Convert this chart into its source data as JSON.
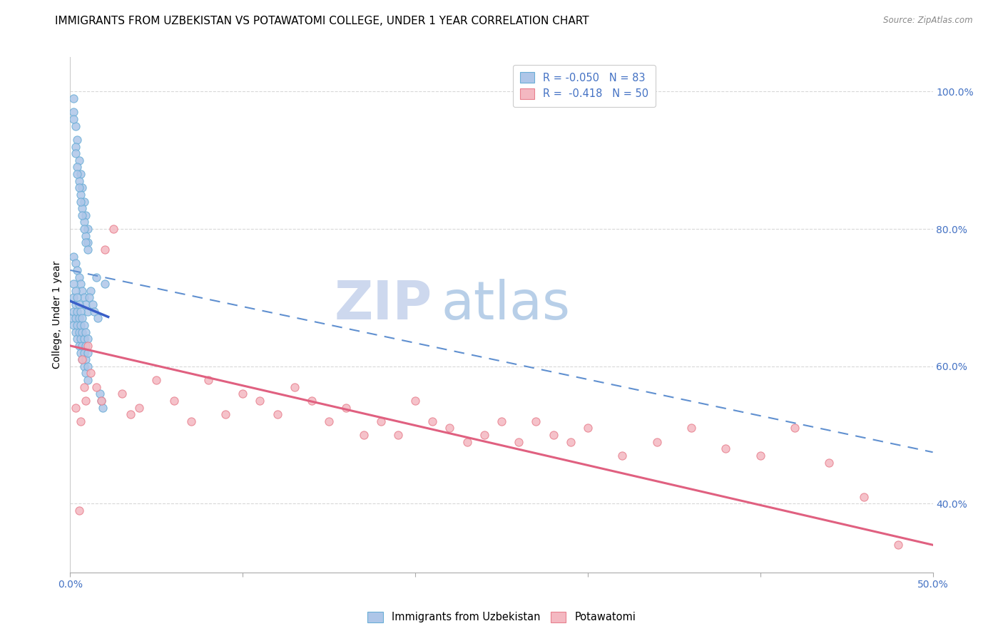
{
  "title": "IMMIGRANTS FROM UZBEKISTAN VS POTAWATOMI COLLEGE, UNDER 1 YEAR CORRELATION CHART",
  "source": "Source: ZipAtlas.com",
  "ylabel": "College, Under 1 year",
  "xmin": 0.0,
  "xmax": 0.5,
  "ymin": 0.3,
  "ymax": 1.05,
  "x_tick_positions": [
    0.0,
    0.1,
    0.2,
    0.3,
    0.4,
    0.5
  ],
  "x_tick_labels": [
    "0.0%",
    "",
    "",
    "",
    "",
    "50.0%"
  ],
  "y_ticks_right": [
    0.4,
    0.6,
    0.8,
    1.0
  ],
  "y_tick_labels_right": [
    "40.0%",
    "60.0%",
    "80.0%",
    "100.0%"
  ],
  "watermark_zip": "ZIP",
  "watermark_atlas": "atlas",
  "scatter_blue_x": [
    0.002,
    0.003,
    0.004,
    0.005,
    0.006,
    0.007,
    0.008,
    0.009,
    0.01,
    0.002,
    0.003,
    0.004,
    0.005,
    0.006,
    0.007,
    0.008,
    0.009,
    0.01,
    0.002,
    0.003,
    0.004,
    0.005,
    0.006,
    0.007,
    0.008,
    0.009,
    0.01,
    0.002,
    0.003,
    0.004,
    0.005,
    0.006,
    0.007,
    0.008,
    0.009,
    0.01,
    0.001,
    0.002,
    0.003,
    0.004,
    0.005,
    0.006,
    0.007,
    0.008,
    0.009,
    0.01,
    0.002,
    0.003,
    0.004,
    0.005,
    0.006,
    0.007,
    0.008,
    0.009,
    0.01,
    0.002,
    0.003,
    0.004,
    0.005,
    0.006,
    0.007,
    0.008,
    0.009,
    0.01,
    0.002,
    0.003,
    0.004,
    0.005,
    0.006,
    0.007,
    0.008,
    0.009,
    0.01,
    0.015,
    0.02,
    0.012,
    0.011,
    0.013,
    0.014,
    0.016,
    0.018,
    0.019,
    0.017
  ],
  "scatter_blue_y": [
    0.99,
    0.95,
    0.93,
    0.9,
    0.88,
    0.86,
    0.84,
    0.82,
    0.8,
    0.97,
    0.92,
    0.89,
    0.87,
    0.85,
    0.83,
    0.81,
    0.79,
    0.78,
    0.96,
    0.91,
    0.88,
    0.86,
    0.84,
    0.82,
    0.8,
    0.78,
    0.77,
    0.76,
    0.75,
    0.74,
    0.73,
    0.72,
    0.71,
    0.7,
    0.69,
    0.68,
    0.67,
    0.66,
    0.65,
    0.64,
    0.63,
    0.62,
    0.61,
    0.6,
    0.59,
    0.58,
    0.68,
    0.67,
    0.66,
    0.65,
    0.64,
    0.63,
    0.62,
    0.61,
    0.6,
    0.7,
    0.69,
    0.68,
    0.67,
    0.66,
    0.65,
    0.64,
    0.63,
    0.62,
    0.72,
    0.71,
    0.7,
    0.69,
    0.68,
    0.67,
    0.66,
    0.65,
    0.64,
    0.73,
    0.72,
    0.71,
    0.7,
    0.69,
    0.68,
    0.67,
    0.55,
    0.54,
    0.56
  ],
  "scatter_pink_x": [
    0.003,
    0.005,
    0.006,
    0.007,
    0.008,
    0.009,
    0.01,
    0.012,
    0.015,
    0.018,
    0.02,
    0.025,
    0.03,
    0.035,
    0.04,
    0.05,
    0.06,
    0.07,
    0.08,
    0.09,
    0.1,
    0.11,
    0.12,
    0.13,
    0.14,
    0.15,
    0.16,
    0.17,
    0.18,
    0.19,
    0.2,
    0.21,
    0.22,
    0.23,
    0.24,
    0.25,
    0.26,
    0.27,
    0.28,
    0.29,
    0.3,
    0.32,
    0.34,
    0.36,
    0.38,
    0.4,
    0.42,
    0.44,
    0.46,
    0.48
  ],
  "scatter_pink_y": [
    0.54,
    0.39,
    0.52,
    0.61,
    0.57,
    0.55,
    0.63,
    0.59,
    0.57,
    0.55,
    0.77,
    0.8,
    0.56,
    0.53,
    0.54,
    0.58,
    0.55,
    0.52,
    0.58,
    0.53,
    0.56,
    0.55,
    0.53,
    0.57,
    0.55,
    0.52,
    0.54,
    0.5,
    0.52,
    0.5,
    0.55,
    0.52,
    0.51,
    0.49,
    0.5,
    0.52,
    0.49,
    0.52,
    0.5,
    0.49,
    0.51,
    0.47,
    0.49,
    0.51,
    0.48,
    0.47,
    0.51,
    0.46,
    0.41,
    0.34
  ],
  "blue_line_x": [
    0.0,
    0.022
  ],
  "blue_line_y": [
    0.695,
    0.672
  ],
  "dash_line_x": [
    0.0,
    0.5
  ],
  "dash_line_y": [
    0.74,
    0.475
  ],
  "pink_line_x": [
    0.0,
    0.5
  ],
  "pink_line_y": [
    0.63,
    0.34
  ],
  "blue_scatter_color": "#aec6e8",
  "blue_scatter_edge": "#6aaed6",
  "pink_scatter_color": "#f4b8c1",
  "pink_scatter_edge": "#e8808e",
  "blue_line_color": "#3a5fc8",
  "dash_line_color": "#6090d0",
  "pink_line_color": "#e06080",
  "grid_color": "#d8d8d8",
  "background_color": "#ffffff",
  "title_fontsize": 11,
  "axis_label_fontsize": 10,
  "tick_fontsize": 10,
  "right_tick_color": "#4472c4",
  "legend_text_color": "#4472c4"
}
